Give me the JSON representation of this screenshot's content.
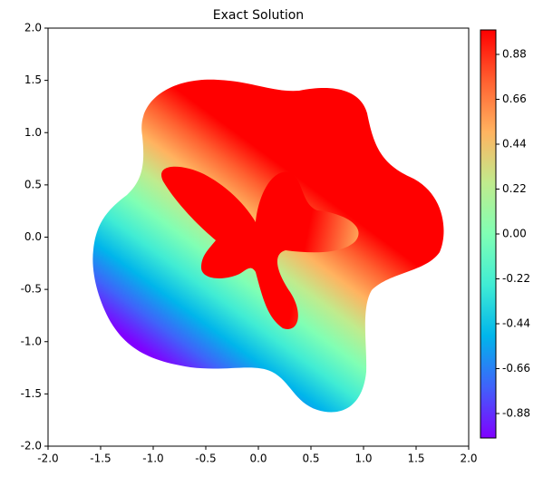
{
  "chart_data": {
    "type": "contourf",
    "title": "Exact Solution",
    "xlim": [
      -2,
      2
    ],
    "ylim": [
      -2,
      2
    ],
    "xticks": [
      {
        "value": -2,
        "label": "-2.0"
      },
      {
        "value": -1.5,
        "label": "-1.5"
      },
      {
        "value": -1,
        "label": "-1.0"
      },
      {
        "value": -0.5,
        "label": "-0.5"
      },
      {
        "value": 0,
        "label": "0.0"
      },
      {
        "value": 0.5,
        "label": "0.5"
      },
      {
        "value": 1,
        "label": "1.0"
      },
      {
        "value": 1.5,
        "label": "1.5"
      },
      {
        "value": 2,
        "label": "2.0"
      }
    ],
    "yticks": [
      {
        "value": -2,
        "label": "-2.0"
      },
      {
        "value": -1.5,
        "label": "-1.5"
      },
      {
        "value": -1,
        "label": "-1.0"
      },
      {
        "value": -0.5,
        "label": "-0.5"
      },
      {
        "value": 0,
        "label": "0.0"
      },
      {
        "value": 0.5,
        "label": "0.5"
      },
      {
        "value": 1,
        "label": "1.0"
      },
      {
        "value": 1.5,
        "label": "1.5"
      },
      {
        "value": 2,
        "label": "2.0"
      }
    ],
    "colormap": "rainbow",
    "clim": [
      -1,
      1
    ],
    "cticks": [
      -0.88,
      -0.66,
      -0.44,
      -0.22,
      {
        "value": 0,
        "label": "0.00"
      },
      0.22,
      0.44,
      0.66,
      0.88
    ]
  }
}
